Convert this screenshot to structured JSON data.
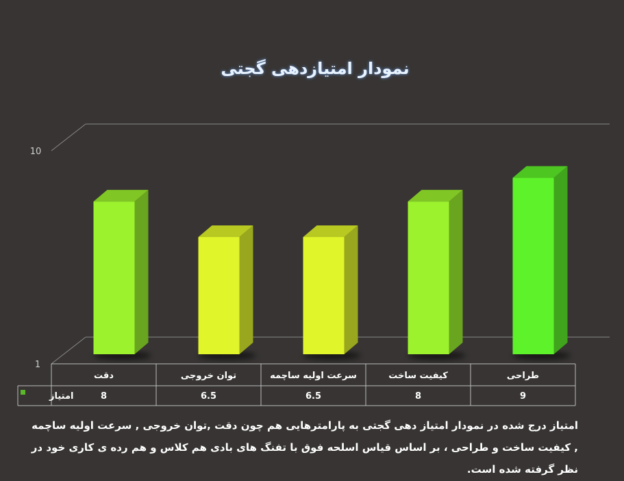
{
  "chart_data": {
    "type": "bar",
    "title": "نمودار امتیازدهی گجتی",
    "categories": [
      "دقت",
      "توان خروجی",
      "سرعت اولیه ساچمه",
      "کیفیت ساخت",
      "طراحی"
    ],
    "series": [
      {
        "name": "امتیاز",
        "values": [
          8,
          6.5,
          6.5,
          8,
          9
        ]
      }
    ],
    "value_labels": [
      "8",
      "6.5",
      "6.5",
      "8",
      "9"
    ],
    "ylim": [
      1,
      10
    ],
    "y_ticks": [
      "1",
      "10"
    ],
    "bar_colors": [
      "#9cf22d",
      "#e0f52a",
      "#e0f52a",
      "#9cf22d",
      "#5ef22a"
    ],
    "legend_color": "#5ab82a",
    "background": "#373433",
    "grid": true,
    "data_table": true
  },
  "caption": "امتیاز درج شده در نمودار امتیاز دهی گجتی  به پارامترهایی هم چون دقت ,توان خروجی , سرعت اولیه ساچمه , کیفیت ساخت و طراحی ، بر اساس قیاس اسلحه فوق با تفنگ های بادی هم کلاس و هم رده ی کاری خود در نظر گرفته شده است."
}
